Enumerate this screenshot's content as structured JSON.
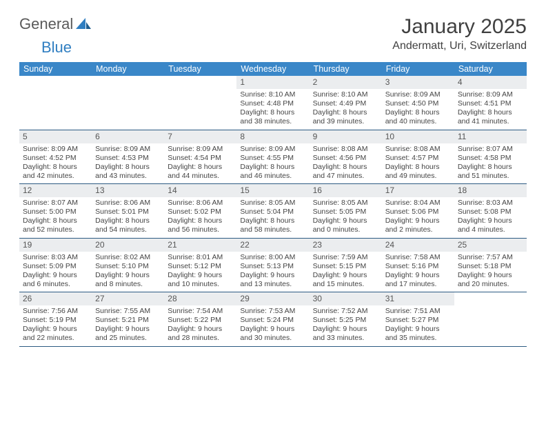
{
  "brand": {
    "part1": "General",
    "part2": "Blue"
  },
  "title": "January 2025",
  "location": "Andermatt, Uri, Switzerland",
  "colors": {
    "header_bg": "#3a87c8",
    "daynum_bg": "#ebedef",
    "week_border": "#2b5a82",
    "brand_blue": "#2f7ec1"
  },
  "day_names": [
    "Sunday",
    "Monday",
    "Tuesday",
    "Wednesday",
    "Thursday",
    "Friday",
    "Saturday"
  ],
  "weeks": [
    [
      {
        "empty": true
      },
      {
        "empty": true
      },
      {
        "empty": true
      },
      {
        "day": "1",
        "sunrise": "Sunrise: 8:10 AM",
        "sunset": "Sunset: 4:48 PM",
        "daylight1": "Daylight: 8 hours",
        "daylight2": "and 38 minutes."
      },
      {
        "day": "2",
        "sunrise": "Sunrise: 8:10 AM",
        "sunset": "Sunset: 4:49 PM",
        "daylight1": "Daylight: 8 hours",
        "daylight2": "and 39 minutes."
      },
      {
        "day": "3",
        "sunrise": "Sunrise: 8:09 AM",
        "sunset": "Sunset: 4:50 PM",
        "daylight1": "Daylight: 8 hours",
        "daylight2": "and 40 minutes."
      },
      {
        "day": "4",
        "sunrise": "Sunrise: 8:09 AM",
        "sunset": "Sunset: 4:51 PM",
        "daylight1": "Daylight: 8 hours",
        "daylight2": "and 41 minutes."
      }
    ],
    [
      {
        "day": "5",
        "sunrise": "Sunrise: 8:09 AM",
        "sunset": "Sunset: 4:52 PM",
        "daylight1": "Daylight: 8 hours",
        "daylight2": "and 42 minutes."
      },
      {
        "day": "6",
        "sunrise": "Sunrise: 8:09 AM",
        "sunset": "Sunset: 4:53 PM",
        "daylight1": "Daylight: 8 hours",
        "daylight2": "and 43 minutes."
      },
      {
        "day": "7",
        "sunrise": "Sunrise: 8:09 AM",
        "sunset": "Sunset: 4:54 PM",
        "daylight1": "Daylight: 8 hours",
        "daylight2": "and 44 minutes."
      },
      {
        "day": "8",
        "sunrise": "Sunrise: 8:09 AM",
        "sunset": "Sunset: 4:55 PM",
        "daylight1": "Daylight: 8 hours",
        "daylight2": "and 46 minutes."
      },
      {
        "day": "9",
        "sunrise": "Sunrise: 8:08 AM",
        "sunset": "Sunset: 4:56 PM",
        "daylight1": "Daylight: 8 hours",
        "daylight2": "and 47 minutes."
      },
      {
        "day": "10",
        "sunrise": "Sunrise: 8:08 AM",
        "sunset": "Sunset: 4:57 PM",
        "daylight1": "Daylight: 8 hours",
        "daylight2": "and 49 minutes."
      },
      {
        "day": "11",
        "sunrise": "Sunrise: 8:07 AM",
        "sunset": "Sunset: 4:58 PM",
        "daylight1": "Daylight: 8 hours",
        "daylight2": "and 51 minutes."
      }
    ],
    [
      {
        "day": "12",
        "sunrise": "Sunrise: 8:07 AM",
        "sunset": "Sunset: 5:00 PM",
        "daylight1": "Daylight: 8 hours",
        "daylight2": "and 52 minutes."
      },
      {
        "day": "13",
        "sunrise": "Sunrise: 8:06 AM",
        "sunset": "Sunset: 5:01 PM",
        "daylight1": "Daylight: 8 hours",
        "daylight2": "and 54 minutes."
      },
      {
        "day": "14",
        "sunrise": "Sunrise: 8:06 AM",
        "sunset": "Sunset: 5:02 PM",
        "daylight1": "Daylight: 8 hours",
        "daylight2": "and 56 minutes."
      },
      {
        "day": "15",
        "sunrise": "Sunrise: 8:05 AM",
        "sunset": "Sunset: 5:04 PM",
        "daylight1": "Daylight: 8 hours",
        "daylight2": "and 58 minutes."
      },
      {
        "day": "16",
        "sunrise": "Sunrise: 8:05 AM",
        "sunset": "Sunset: 5:05 PM",
        "daylight1": "Daylight: 9 hours",
        "daylight2": "and 0 minutes."
      },
      {
        "day": "17",
        "sunrise": "Sunrise: 8:04 AM",
        "sunset": "Sunset: 5:06 PM",
        "daylight1": "Daylight: 9 hours",
        "daylight2": "and 2 minutes."
      },
      {
        "day": "18",
        "sunrise": "Sunrise: 8:03 AM",
        "sunset": "Sunset: 5:08 PM",
        "daylight1": "Daylight: 9 hours",
        "daylight2": "and 4 minutes."
      }
    ],
    [
      {
        "day": "19",
        "sunrise": "Sunrise: 8:03 AM",
        "sunset": "Sunset: 5:09 PM",
        "daylight1": "Daylight: 9 hours",
        "daylight2": "and 6 minutes."
      },
      {
        "day": "20",
        "sunrise": "Sunrise: 8:02 AM",
        "sunset": "Sunset: 5:10 PM",
        "daylight1": "Daylight: 9 hours",
        "daylight2": "and 8 minutes."
      },
      {
        "day": "21",
        "sunrise": "Sunrise: 8:01 AM",
        "sunset": "Sunset: 5:12 PM",
        "daylight1": "Daylight: 9 hours",
        "daylight2": "and 10 minutes."
      },
      {
        "day": "22",
        "sunrise": "Sunrise: 8:00 AM",
        "sunset": "Sunset: 5:13 PM",
        "daylight1": "Daylight: 9 hours",
        "daylight2": "and 13 minutes."
      },
      {
        "day": "23",
        "sunrise": "Sunrise: 7:59 AM",
        "sunset": "Sunset: 5:15 PM",
        "daylight1": "Daylight: 9 hours",
        "daylight2": "and 15 minutes."
      },
      {
        "day": "24",
        "sunrise": "Sunrise: 7:58 AM",
        "sunset": "Sunset: 5:16 PM",
        "daylight1": "Daylight: 9 hours",
        "daylight2": "and 17 minutes."
      },
      {
        "day": "25",
        "sunrise": "Sunrise: 7:57 AM",
        "sunset": "Sunset: 5:18 PM",
        "daylight1": "Daylight: 9 hours",
        "daylight2": "and 20 minutes."
      }
    ],
    [
      {
        "day": "26",
        "sunrise": "Sunrise: 7:56 AM",
        "sunset": "Sunset: 5:19 PM",
        "daylight1": "Daylight: 9 hours",
        "daylight2": "and 22 minutes."
      },
      {
        "day": "27",
        "sunrise": "Sunrise: 7:55 AM",
        "sunset": "Sunset: 5:21 PM",
        "daylight1": "Daylight: 9 hours",
        "daylight2": "and 25 minutes."
      },
      {
        "day": "28",
        "sunrise": "Sunrise: 7:54 AM",
        "sunset": "Sunset: 5:22 PM",
        "daylight1": "Daylight: 9 hours",
        "daylight2": "and 28 minutes."
      },
      {
        "day": "29",
        "sunrise": "Sunrise: 7:53 AM",
        "sunset": "Sunset: 5:24 PM",
        "daylight1": "Daylight: 9 hours",
        "daylight2": "and 30 minutes."
      },
      {
        "day": "30",
        "sunrise": "Sunrise: 7:52 AM",
        "sunset": "Sunset: 5:25 PM",
        "daylight1": "Daylight: 9 hours",
        "daylight2": "and 33 minutes."
      },
      {
        "day": "31",
        "sunrise": "Sunrise: 7:51 AM",
        "sunset": "Sunset: 5:27 PM",
        "daylight1": "Daylight: 9 hours",
        "daylight2": "and 35 minutes."
      },
      {
        "empty": true
      }
    ]
  ]
}
